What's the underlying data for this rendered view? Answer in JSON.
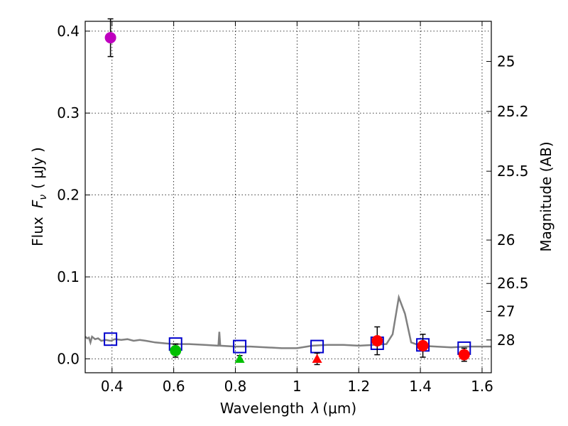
{
  "chart_data": {
    "type": "scatter",
    "xlabel_prefix": "Wavelength",
    "xlabel_symbol": "λ",
    "xlabel_unit": "(μm)",
    "ylabel_prefix": "Flux",
    "ylabel_symbol_main": "F",
    "ylabel_symbol_sub": "ν",
    "ylabel_unit": "( μJy )",
    "y2label": "Magnitude (AB)",
    "xlim": [
      0.313,
      1.63
    ],
    "ylim": [
      -0.017,
      0.412
    ],
    "xticks": [
      0.4,
      0.6,
      0.8,
      1.0,
      1.2,
      1.4,
      1.6
    ],
    "xtick_labels": [
      "0.4",
      "0.6",
      "0.8",
      "1",
      "1.2",
      "1.4",
      "1.6"
    ],
    "yticks": [
      0.0,
      0.1,
      0.2,
      0.3,
      0.4
    ],
    "ytick_labels": [
      "0.0",
      "0.1",
      "0.2",
      "0.3",
      "0.4"
    ],
    "y2ticks": [
      {
        "label": "25",
        "flux": 0.363
      },
      {
        "label": "25.2",
        "flux": 0.302
      },
      {
        "label": "25.5",
        "flux": 0.229
      },
      {
        "label": "26",
        "flux": 0.145
      },
      {
        "label": "26.5",
        "flux": 0.092
      },
      {
        "label": "27",
        "flux": 0.058
      },
      {
        "label": "28",
        "flux": 0.023
      }
    ],
    "grid": true,
    "observed": [
      {
        "x": 0.395,
        "y": 0.392,
        "err": 0.023,
        "marker": "circle",
        "color": "#bf00bf"
      },
      {
        "x": 0.606,
        "y": 0.01,
        "err": 0.008,
        "marker": "circle",
        "color": "#00bf00"
      },
      {
        "x": 0.814,
        "y": 0.0,
        "err": 0.004,
        "marker": "triangle",
        "color": "#00bf00"
      },
      {
        "x": 1.065,
        "y": 0.0,
        "err": 0.007,
        "marker": "triangle",
        "color": "#ff0000"
      },
      {
        "x": 1.26,
        "y": 0.022,
        "err": 0.017,
        "marker": "circle",
        "color": "#ff0000"
      },
      {
        "x": 1.408,
        "y": 0.016,
        "err": 0.014,
        "marker": "circle",
        "color": "#ff0000"
      },
      {
        "x": 1.542,
        "y": 0.005,
        "err": 0.008,
        "marker": "circle",
        "color": "#ff0000"
      }
    ],
    "model_points": [
      {
        "x": 0.395,
        "y": 0.024
      },
      {
        "x": 0.606,
        "y": 0.018
      },
      {
        "x": 0.814,
        "y": 0.015
      },
      {
        "x": 1.065,
        "y": 0.015
      },
      {
        "x": 1.26,
        "y": 0.019
      },
      {
        "x": 1.408,
        "y": 0.017
      },
      {
        "x": 1.542,
        "y": 0.013
      }
    ],
    "model_spectrum": [
      [
        0.313,
        0.027
      ],
      [
        0.32,
        0.025
      ],
      [
        0.325,
        0.026
      ],
      [
        0.33,
        0.02
      ],
      [
        0.335,
        0.027
      ],
      [
        0.345,
        0.024
      ],
      [
        0.355,
        0.025
      ],
      [
        0.365,
        0.022
      ],
      [
        0.38,
        0.023
      ],
      [
        0.395,
        0.022
      ],
      [
        0.41,
        0.024
      ],
      [
        0.43,
        0.023
      ],
      [
        0.45,
        0.024
      ],
      [
        0.47,
        0.022
      ],
      [
        0.49,
        0.023
      ],
      [
        0.51,
        0.022
      ],
      [
        0.54,
        0.02
      ],
      [
        0.57,
        0.019
      ],
      [
        0.6,
        0.018
      ],
      [
        0.65,
        0.018
      ],
      [
        0.7,
        0.017
      ],
      [
        0.745,
        0.016
      ],
      [
        0.748,
        0.033
      ],
      [
        0.751,
        0.016
      ],
      [
        0.8,
        0.015
      ],
      [
        0.85,
        0.015
      ],
      [
        0.9,
        0.014
      ],
      [
        0.95,
        0.013
      ],
      [
        1.0,
        0.013
      ],
      [
        1.05,
        0.016
      ],
      [
        1.1,
        0.017
      ],
      [
        1.15,
        0.017
      ],
      [
        1.2,
        0.016
      ],
      [
        1.25,
        0.017
      ],
      [
        1.29,
        0.018
      ],
      [
        1.31,
        0.03
      ],
      [
        1.33,
        0.075
      ],
      [
        1.35,
        0.055
      ],
      [
        1.37,
        0.02
      ],
      [
        1.4,
        0.016
      ],
      [
        1.45,
        0.015
      ],
      [
        1.5,
        0.014
      ],
      [
        1.55,
        0.015
      ],
      [
        1.6,
        0.015
      ],
      [
        1.63,
        0.015
      ]
    ]
  }
}
